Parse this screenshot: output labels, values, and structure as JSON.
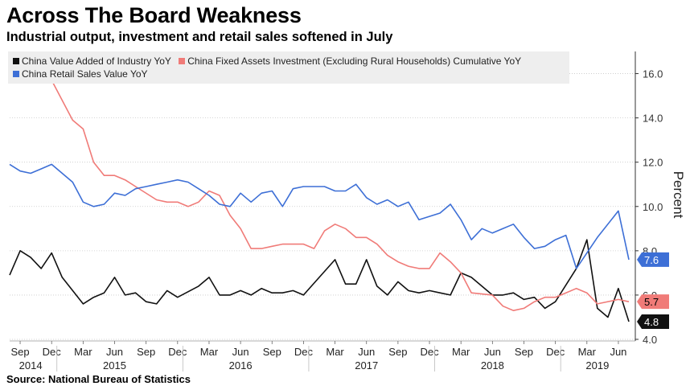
{
  "header": {
    "title": "Across The Board Weakness",
    "subtitle": "Industrial output, investment and retail sales softened in July"
  },
  "footer": {
    "source": "Source: National Bureau of Statistics"
  },
  "legend": {
    "row1": [
      {
        "label": "China Value Added of Industry YoY",
        "color": "#111111"
      },
      {
        "label": "China Fixed Assets Investment (Excluding Rural Households) Cumulative YoY",
        "color": "#f07b78"
      }
    ],
    "row2": [
      {
        "label": "China Retail Sales Value YoY",
        "color": "#3d6fd6"
      }
    ]
  },
  "chart_data": {
    "type": "line",
    "ylabel": "Percent",
    "ylim": [
      4.0,
      17.0
    ],
    "yticks": [
      4.0,
      6.0,
      8.0,
      10.0,
      12.0,
      14.0,
      16.0
    ],
    "ytick_labels": [
      "4.0",
      "6.0",
      "8.0",
      "10.0",
      "12.0",
      "14.0",
      "16.0"
    ],
    "x_start": "2014-08",
    "x_end": "2019-07",
    "month_ticks": [
      {
        "label": "Sep",
        "month": "2014-09"
      },
      {
        "label": "Dec",
        "month": "2014-12"
      },
      {
        "label": "Mar",
        "month": "2015-03"
      },
      {
        "label": "Jun",
        "month": "2015-06"
      },
      {
        "label": "Sep",
        "month": "2015-09"
      },
      {
        "label": "Dec",
        "month": "2015-12"
      },
      {
        "label": "Mar",
        "month": "2016-03"
      },
      {
        "label": "Jun",
        "month": "2016-06"
      },
      {
        "label": "Sep",
        "month": "2016-09"
      },
      {
        "label": "Dec",
        "month": "2016-12"
      },
      {
        "label": "Mar",
        "month": "2017-03"
      },
      {
        "label": "Jun",
        "month": "2017-06"
      },
      {
        "label": "Sep",
        "month": "2017-09"
      },
      {
        "label": "Dec",
        "month": "2017-12"
      },
      {
        "label": "Mar",
        "month": "2018-03"
      },
      {
        "label": "Jun",
        "month": "2018-06"
      },
      {
        "label": "Sep",
        "month": "2018-09"
      },
      {
        "label": "Dec",
        "month": "2018-12"
      },
      {
        "label": "Mar",
        "month": "2019-03"
      },
      {
        "label": "Jun",
        "month": "2019-06"
      }
    ],
    "year_labels": [
      {
        "label": "2014",
        "month": "2014-10"
      },
      {
        "label": "2015",
        "month": "2015-06"
      },
      {
        "label": "2016",
        "month": "2016-06"
      },
      {
        "label": "2017",
        "month": "2017-06"
      },
      {
        "label": "2018",
        "month": "2018-06"
      },
      {
        "label": "2019",
        "month": "2019-04"
      }
    ],
    "year_boundaries": [
      "2014-12",
      "2015-12",
      "2016-12",
      "2017-12",
      "2018-12"
    ],
    "series": [
      {
        "name": "China Value Added of Industry YoY",
        "color": "#111111",
        "last_label": "4.8",
        "values": [
          6.9,
          8.0,
          7.7,
          7.2,
          7.9,
          6.8,
          5.6,
          5.9,
          6.1,
          6.8,
          6.0,
          6.1,
          5.7,
          5.6,
          6.2,
          5.9,
          6.4,
          6.8,
          6.0,
          6.0,
          6.2,
          6.0,
          6.3,
          6.1,
          6.1,
          6.2,
          6.0,
          7.6,
          6.5,
          6.5,
          7.6,
          6.4,
          6.0,
          6.6,
          6.2,
          6.1,
          6.2,
          6.1,
          6.0,
          7.0,
          6.8,
          6.0,
          6.0,
          6.1,
          5.8,
          5.9,
          5.4,
          5.7,
          7.2,
          8.5,
          5.4,
          5.0,
          6.3,
          4.8
        ],
        "month_index": [
          0,
          1,
          2,
          3,
          4,
          5,
          7,
          8,
          9,
          10,
          11,
          12,
          13,
          14,
          15,
          16,
          18,
          19,
          20,
          21,
          22,
          23,
          24,
          25,
          26,
          27,
          28,
          31,
          32,
          33,
          34,
          35,
          36,
          37,
          38,
          39,
          40,
          41,
          42,
          43,
          44,
          46,
          47,
          48,
          49,
          50,
          51,
          52,
          54,
          55,
          56,
          57,
          58,
          59
        ]
      },
      {
        "name": "China Fixed Assets Investment (Excluding Rural Households) Cumulative YoY",
        "color": "#f07b78",
        "last_label": "5.7",
        "values": [
          16.5,
          16.1,
          15.9,
          15.8,
          15.7,
          13.9,
          13.5,
          12.0,
          11.4,
          11.4,
          11.2,
          10.9,
          10.3,
          10.2,
          10.2,
          10.0,
          10.2,
          10.7,
          10.5,
          9.6,
          9.0,
          8.1,
          8.1,
          8.2,
          8.3,
          8.3,
          8.3,
          8.1,
          8.9,
          9.2,
          9.0,
          8.6,
          8.6,
          8.3,
          7.8,
          7.5,
          7.3,
          7.2,
          7.2,
          7.9,
          7.5,
          7.0,
          6.1,
          6.0,
          5.5,
          5.3,
          5.4,
          5.7,
          5.9,
          5.9,
          6.1,
          6.3,
          6.1,
          5.6,
          5.8,
          5.7
        ],
        "month_index": [
          0,
          1,
          2,
          3,
          4,
          6,
          7,
          8,
          9,
          10,
          11,
          12,
          14,
          15,
          16,
          17,
          18,
          19,
          20,
          21,
          22,
          23,
          24,
          25,
          26,
          27,
          28,
          29,
          30,
          31,
          32,
          33,
          34,
          35,
          36,
          37,
          38,
          39,
          40,
          41,
          42,
          43,
          44,
          46,
          47,
          48,
          49,
          50,
          51,
          52,
          53,
          54,
          55,
          56,
          58,
          59
        ]
      },
      {
        "name": "China Retail Sales Value YoY",
        "color": "#3d6fd6",
        "last_label": "7.6",
        "values": [
          11.9,
          11.6,
          11.5,
          11.7,
          11.9,
          11.1,
          10.2,
          10.0,
          10.1,
          10.6,
          10.5,
          10.8,
          10.9,
          11.0,
          11.1,
          11.2,
          11.1,
          10.8,
          10.5,
          10.1,
          10.0,
          10.6,
          10.2,
          10.6,
          10.7,
          10.0,
          10.8,
          10.9,
          10.9,
          10.9,
          10.7,
          10.7,
          11.0,
          10.4,
          10.1,
          10.3,
          10.0,
          10.2,
          9.4,
          9.7,
          10.1,
          9.4,
          8.5,
          9.0,
          8.8,
          9.0,
          9.2,
          8.6,
          8.1,
          8.2,
          8.5,
          8.7,
          7.2,
          8.6,
          9.8,
          7.6
        ],
        "month_index": [
          0,
          1,
          2,
          3,
          4,
          6,
          7,
          8,
          9,
          10,
          11,
          12,
          13,
          14,
          15,
          16,
          17,
          18,
          19,
          20,
          21,
          22,
          23,
          24,
          25,
          26,
          27,
          28,
          29,
          30,
          31,
          32,
          33,
          34,
          35,
          36,
          37,
          38,
          39,
          41,
          42,
          43,
          44,
          45,
          46,
          47,
          48,
          49,
          50,
          51,
          52,
          53,
          54,
          56,
          58,
          59
        ]
      }
    ]
  }
}
